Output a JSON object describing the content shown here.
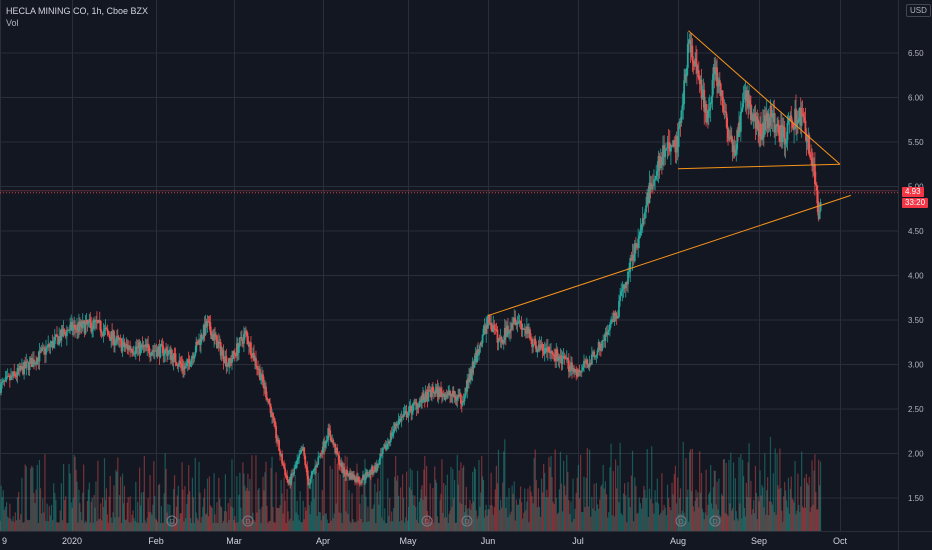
{
  "header": {
    "title": "HECLA MINING CO, 1h, Cboe BZX",
    "volume_label": "Vol"
  },
  "currency_label": "USD",
  "price_tag": "4.93",
  "countdown_tag": "33:20",
  "colors": {
    "background": "#131722",
    "grid": "#2a2e39",
    "up": "#26a69a",
    "down": "#ef5350",
    "trendline": "#f7931a",
    "axis_text": "#b2b5be",
    "price_tag": "#f23645"
  },
  "chart_data": {
    "type": "candlestick",
    "x_tick_labels": [
      "9",
      "2020",
      "Feb",
      "Mar",
      "Apr",
      "May",
      "Jun",
      "Jul",
      "Aug",
      "Sep",
      "Oct"
    ],
    "y_tick_labels": [
      "1.50",
      "2.00",
      "2.50",
      "3.00",
      "3.50",
      "4.00",
      "4.50",
      "5.00",
      "5.50",
      "6.00",
      "6.50"
    ],
    "ylim": [
      1.0,
      6.9
    ],
    "grid": true,
    "last_price": 4.93,
    "price_path": [
      {
        "date": "Dec 9",
        "close": 2.75
      },
      {
        "date": "Dec 20",
        "close": 3.05
      },
      {
        "date": "Dec 31",
        "close": 3.4
      },
      {
        "date": "Jan 10",
        "close": 3.45
      },
      {
        "date": "Jan 20",
        "close": 3.2
      },
      {
        "date": "Feb 5",
        "close": 3.15
      },
      {
        "date": "Feb 12",
        "close": 2.95
      },
      {
        "date": "Feb 20",
        "close": 3.45
      },
      {
        "date": "Feb 28",
        "close": 3.0
      },
      {
        "date": "Mar 5",
        "close": 3.35
      },
      {
        "date": "Mar 10",
        "close": 2.9
      },
      {
        "date": "Mar 13",
        "close": 2.6
      },
      {
        "date": "Mar 17",
        "close": 2.0
      },
      {
        "date": "Mar 20",
        "close": 1.65
      },
      {
        "date": "Mar 25",
        "close": 2.05
      },
      {
        "date": "Mar 27",
        "close": 1.65
      },
      {
        "date": "Apr 3",
        "close": 2.25
      },
      {
        "date": "Apr 8",
        "close": 1.8
      },
      {
        "date": "Apr 14",
        "close": 1.7
      },
      {
        "date": "Apr 20",
        "close": 1.85
      },
      {
        "date": "Apr 27",
        "close": 2.35
      },
      {
        "date": "May 4",
        "close": 2.55
      },
      {
        "date": "May 11",
        "close": 2.7
      },
      {
        "date": "May 18",
        "close": 2.65
      },
      {
        "date": "May 22",
        "close": 2.6
      },
      {
        "date": "May 27",
        "close": 3.05
      },
      {
        "date": "Jun 1",
        "close": 3.5
      },
      {
        "date": "Jun 5",
        "close": 3.25
      },
      {
        "date": "Jun 10",
        "close": 3.55
      },
      {
        "date": "Jun 17",
        "close": 3.2
      },
      {
        "date": "Jun 24",
        "close": 3.1
      },
      {
        "date": "Jul 1",
        "close": 2.9
      },
      {
        "date": "Jul 7",
        "close": 3.15
      },
      {
        "date": "Jul 13",
        "close": 3.55
      },
      {
        "date": "Jul 17",
        "close": 4.1
      },
      {
        "date": "Jul 21",
        "close": 4.6
      },
      {
        "date": "Jul 24",
        "close": 5.1
      },
      {
        "date": "Jul 28",
        "close": 5.4
      },
      {
        "date": "Aug 1",
        "close": 5.5
      },
      {
        "date": "Aug 5",
        "close": 6.6
      },
      {
        "date": "Aug 8",
        "close": 6.3
      },
      {
        "date": "Aug 12",
        "close": 5.8
      },
      {
        "date": "Aug 15",
        "close": 6.3
      },
      {
        "date": "Aug 19",
        "close": 5.8
      },
      {
        "date": "Aug 22",
        "close": 5.35
      },
      {
        "date": "Aug 27",
        "close": 6.0
      },
      {
        "date": "Sep 1",
        "close": 5.6
      },
      {
        "date": "Sep 5",
        "close": 5.8
      },
      {
        "date": "Sep 10",
        "close": 5.55
      },
      {
        "date": "Sep 14",
        "close": 5.75
      },
      {
        "date": "Sep 17",
        "close": 5.8
      },
      {
        "date": "Sep 21",
        "close": 5.25
      },
      {
        "date": "Sep 23",
        "close": 4.7
      },
      {
        "date": "Sep 24",
        "close": 4.93
      }
    ],
    "trendlines": [
      {
        "from": {
          "date": "Jun 1",
          "price": 3.55
        },
        "to": {
          "date": "Oct 5",
          "price": 4.9
        }
      },
      {
        "from": {
          "date": "Aug 5",
          "price": 6.75
        },
        "to": {
          "date": "Oct 1",
          "price": 5.25
        }
      },
      {
        "from": {
          "date": "Aug 1",
          "price": 5.2
        },
        "to": {
          "date": "Oct 1",
          "price": 5.25
        }
      }
    ],
    "volume_markers": [
      "D",
      "D",
      "D",
      "D",
      "D",
      "D"
    ]
  }
}
